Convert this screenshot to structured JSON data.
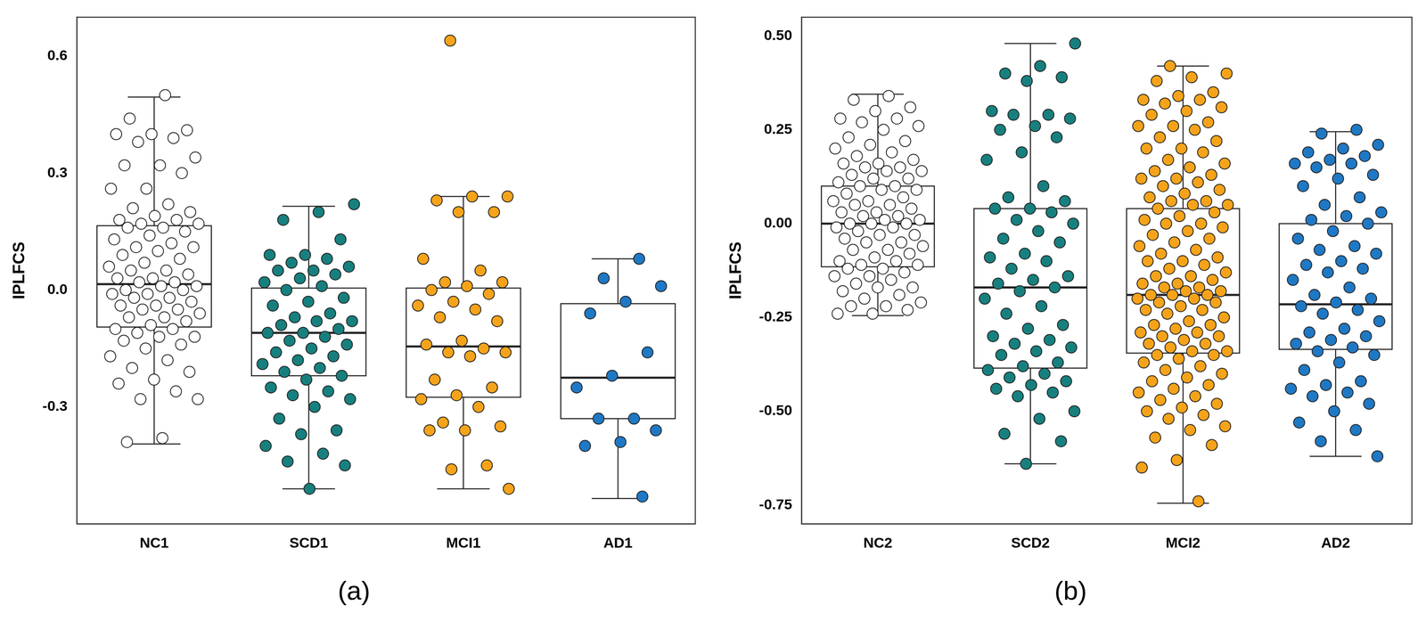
{
  "chart_data": [
    {
      "type": "box",
      "label": "(a)",
      "y_label": "IPLFCS",
      "grid": false,
      "categories": [
        "NC1",
        "SCD1",
        "MCI1",
        "AD1"
      ],
      "colors": [
        "#ffffff",
        "#17807e",
        "#f5a31a",
        "#1f78c4"
      ],
      "ylim": [
        -0.6,
        0.7
      ],
      "yticks": [
        -0.3,
        {
          "value": 0,
          "label": "0.0"
        },
        0.3,
        0.6
      ],
      "boxes": [
        {
          "low": -0.395,
          "q1": -0.095,
          "median": 0.015,
          "q3": 0.165,
          "high": 0.495
        },
        {
          "low": -0.51,
          "q1": -0.22,
          "median": -0.11,
          "q3": 0.005,
          "high": 0.215
        },
        {
          "low": -0.51,
          "q1": -0.275,
          "median": -0.145,
          "q3": 0.005,
          "high": 0.24
        },
        {
          "low": -0.535,
          "q1": -0.33,
          "median": -0.225,
          "q3": -0.035,
          "high": 0.08
        }
      ],
      "points": [
        [
          0.5,
          0.44,
          0.41,
          0.4,
          0.4,
          0.39,
          0.38,
          0.34,
          0.32,
          0.32,
          0.3,
          0.26,
          0.26,
          0.22,
          0.21,
          0.2,
          0.19,
          0.18,
          0.18,
          0.17,
          0.17,
          0.16,
          0.16,
          0.15,
          0.14,
          0.13,
          0.12,
          0.11,
          0.11,
          0.1,
          0.09,
          0.08,
          0.07,
          0.06,
          0.05,
          0.05,
          0.04,
          0.03,
          0.03,
          0.02,
          0.02,
          0.01,
          0.01,
          0.0,
          0.0,
          -0.01,
          -0.01,
          -0.02,
          -0.02,
          -0.03,
          -0.04,
          -0.04,
          -0.05,
          -0.05,
          -0.06,
          -0.07,
          -0.07,
          -0.08,
          -0.09,
          -0.1,
          -0.1,
          -0.11,
          -0.12,
          -0.12,
          -0.13,
          -0.14,
          -0.15,
          -0.17,
          -0.18,
          -0.2,
          -0.21,
          -0.23,
          -0.24,
          -0.26,
          -0.28,
          -0.28,
          -0.38,
          -0.39
        ],
        [
          0.22,
          0.2,
          0.18,
          0.13,
          0.09,
          0.09,
          0.08,
          0.07,
          0.06,
          0.05,
          0.05,
          0.04,
          0.03,
          0.02,
          0.01,
          0.0,
          -0.02,
          -0.03,
          -0.04,
          -0.06,
          -0.07,
          -0.08,
          -0.08,
          -0.09,
          -0.1,
          -0.11,
          -0.11,
          -0.12,
          -0.13,
          -0.14,
          -0.15,
          -0.16,
          -0.17,
          -0.18,
          -0.19,
          -0.2,
          -0.21,
          -0.22,
          -0.23,
          -0.25,
          -0.26,
          -0.27,
          -0.28,
          -0.3,
          -0.33,
          -0.36,
          -0.37,
          -0.4,
          -0.42,
          -0.44,
          -0.45,
          -0.51
        ],
        [
          0.64,
          0.24,
          0.24,
          0.23,
          0.2,
          0.2,
          0.08,
          0.05,
          0.02,
          0.02,
          0.01,
          0.0,
          -0.01,
          -0.03,
          -0.04,
          -0.05,
          -0.07,
          -0.08,
          -0.13,
          -0.14,
          -0.15,
          -0.16,
          -0.16,
          -0.17,
          -0.23,
          -0.25,
          -0.27,
          -0.28,
          -0.3,
          -0.34,
          -0.35,
          -0.36,
          -0.36,
          -0.45,
          -0.46,
          -0.51
        ],
        [
          0.08,
          0.03,
          0.01,
          -0.03,
          -0.06,
          -0.16,
          -0.22,
          -0.25,
          -0.33,
          -0.33,
          -0.36,
          -0.39,
          -0.4,
          -0.53
        ]
      ]
    },
    {
      "type": "box",
      "label": "(b)",
      "y_label": "IPLFCS",
      "grid": false,
      "categories": [
        "NC2",
        "SCD2",
        "MCI2",
        "AD2"
      ],
      "colors": [
        "#ffffff",
        "#17807e",
        "#f5a31a",
        "#1f78c4"
      ],
      "ylim": [
        -0.8,
        0.55
      ],
      "yticks": [
        -0.75,
        {
          "value": -0.5,
          "label": "-0.50"
        },
        -0.25,
        {
          "value": 0,
          "label": "0.00"
        },
        0.25,
        {
          "value": 0.5,
          "label": "0.50"
        }
      ],
      "boxes": [
        {
          "low": -0.245,
          "q1": -0.115,
          "median": 0.0,
          "q3": 0.1,
          "high": 0.345
        },
        {
          "low": -0.64,
          "q1": -0.385,
          "median": -0.17,
          "q3": 0.04,
          "high": 0.48
        },
        {
          "low": -0.745,
          "q1": -0.345,
          "median": -0.19,
          "q3": 0.04,
          "high": 0.42
        },
        {
          "low": -0.62,
          "q1": -0.335,
          "median": -0.215,
          "q3": 0.0,
          "high": 0.245
        }
      ],
      "points": [
        [
          0.34,
          0.33,
          0.31,
          0.3,
          0.28,
          0.28,
          0.27,
          0.26,
          0.25,
          0.23,
          0.22,
          0.21,
          0.2,
          0.19,
          0.18,
          0.17,
          0.16,
          0.16,
          0.15,
          0.15,
          0.14,
          0.14,
          0.13,
          0.12,
          0.12,
          0.11,
          0.1,
          0.1,
          0.09,
          0.09,
          0.08,
          0.07,
          0.06,
          0.06,
          0.05,
          0.05,
          0.04,
          0.03,
          0.03,
          0.02,
          0.02,
          0.01,
          0.01,
          0.0,
          0.0,
          0.0,
          -0.01,
          -0.01,
          -0.02,
          -0.03,
          -0.03,
          -0.04,
          -0.05,
          -0.05,
          -0.06,
          -0.07,
          -0.07,
          -0.08,
          -0.09,
          -0.1,
          -0.1,
          -0.11,
          -0.11,
          -0.12,
          -0.12,
          -0.13,
          -0.14,
          -0.14,
          -0.15,
          -0.16,
          -0.17,
          -0.17,
          -0.18,
          -0.19,
          -0.2,
          -0.21,
          -0.22,
          -0.22,
          -0.23,
          -0.24,
          -0.24
        ],
        [
          0.48,
          0.42,
          0.4,
          0.39,
          0.38,
          0.3,
          0.29,
          0.29,
          0.28,
          0.26,
          0.25,
          0.23,
          0.19,
          0.17,
          0.1,
          0.07,
          0.06,
          0.04,
          0.04,
          0.03,
          0.01,
          0.0,
          -0.02,
          -0.04,
          -0.05,
          -0.08,
          -0.09,
          -0.1,
          -0.12,
          -0.14,
          -0.15,
          -0.16,
          -0.17,
          -0.18,
          -0.2,
          -0.22,
          -0.24,
          -0.27,
          -0.28,
          -0.3,
          -0.31,
          -0.32,
          -0.33,
          -0.34,
          -0.35,
          -0.37,
          -0.38,
          -0.39,
          -0.4,
          -0.41,
          -0.42,
          -0.43,
          -0.44,
          -0.45,
          -0.46,
          -0.5,
          -0.52,
          -0.56,
          -0.58,
          -0.64
        ],
        [
          0.42,
          0.4,
          0.39,
          0.38,
          0.35,
          0.34,
          0.33,
          0.33,
          0.32,
          0.31,
          0.3,
          0.29,
          0.27,
          0.26,
          0.26,
          0.25,
          0.23,
          0.22,
          0.2,
          0.2,
          0.19,
          0.17,
          0.16,
          0.15,
          0.14,
          0.13,
          0.12,
          0.12,
          0.11,
          0.1,
          0.09,
          0.08,
          0.07,
          0.06,
          0.06,
          0.05,
          0.05,
          0.04,
          0.03,
          0.02,
          0.01,
          0.0,
          0.0,
          -0.01,
          -0.02,
          -0.03,
          -0.04,
          -0.05,
          -0.06,
          -0.07,
          -0.08,
          -0.09,
          -0.1,
          -0.1,
          -0.11,
          -0.12,
          -0.13,
          -0.14,
          -0.14,
          -0.15,
          -0.16,
          -0.16,
          -0.17,
          -0.17,
          -0.18,
          -0.18,
          -0.19,
          -0.19,
          -0.19,
          -0.2,
          -0.2,
          -0.21,
          -0.21,
          -0.22,
          -0.23,
          -0.23,
          -0.24,
          -0.25,
          -0.26,
          -0.27,
          -0.27,
          -0.28,
          -0.29,
          -0.29,
          -0.3,
          -0.3,
          -0.31,
          -0.32,
          -0.32,
          -0.33,
          -0.34,
          -0.34,
          -0.35,
          -0.35,
          -0.36,
          -0.37,
          -0.38,
          -0.39,
          -0.4,
          -0.41,
          -0.42,
          -0.43,
          -0.44,
          -0.45,
          -0.46,
          -0.47,
          -0.48,
          -0.49,
          -0.5,
          -0.51,
          -0.52,
          -0.54,
          -0.55,
          -0.57,
          -0.59,
          -0.63,
          -0.65,
          -0.74
        ],
        [
          0.25,
          0.24,
          0.21,
          0.2,
          0.19,
          0.18,
          0.17,
          0.16,
          0.16,
          0.15,
          0.13,
          0.12,
          0.1,
          0.07,
          0.05,
          0.03,
          0.02,
          0.01,
          0.0,
          -0.02,
          -0.04,
          -0.06,
          -0.07,
          -0.08,
          -0.1,
          -0.11,
          -0.12,
          -0.13,
          -0.15,
          -0.17,
          -0.19,
          -0.2,
          -0.21,
          -0.22,
          -0.23,
          -0.24,
          -0.26,
          -0.28,
          -0.29,
          -0.3,
          -0.31,
          -0.32,
          -0.33,
          -0.34,
          -0.35,
          -0.37,
          -0.39,
          -0.42,
          -0.43,
          -0.44,
          -0.45,
          -0.46,
          -0.48,
          -0.5,
          -0.53,
          -0.55,
          -0.58,
          -0.62
        ]
      ]
    }
  ]
}
